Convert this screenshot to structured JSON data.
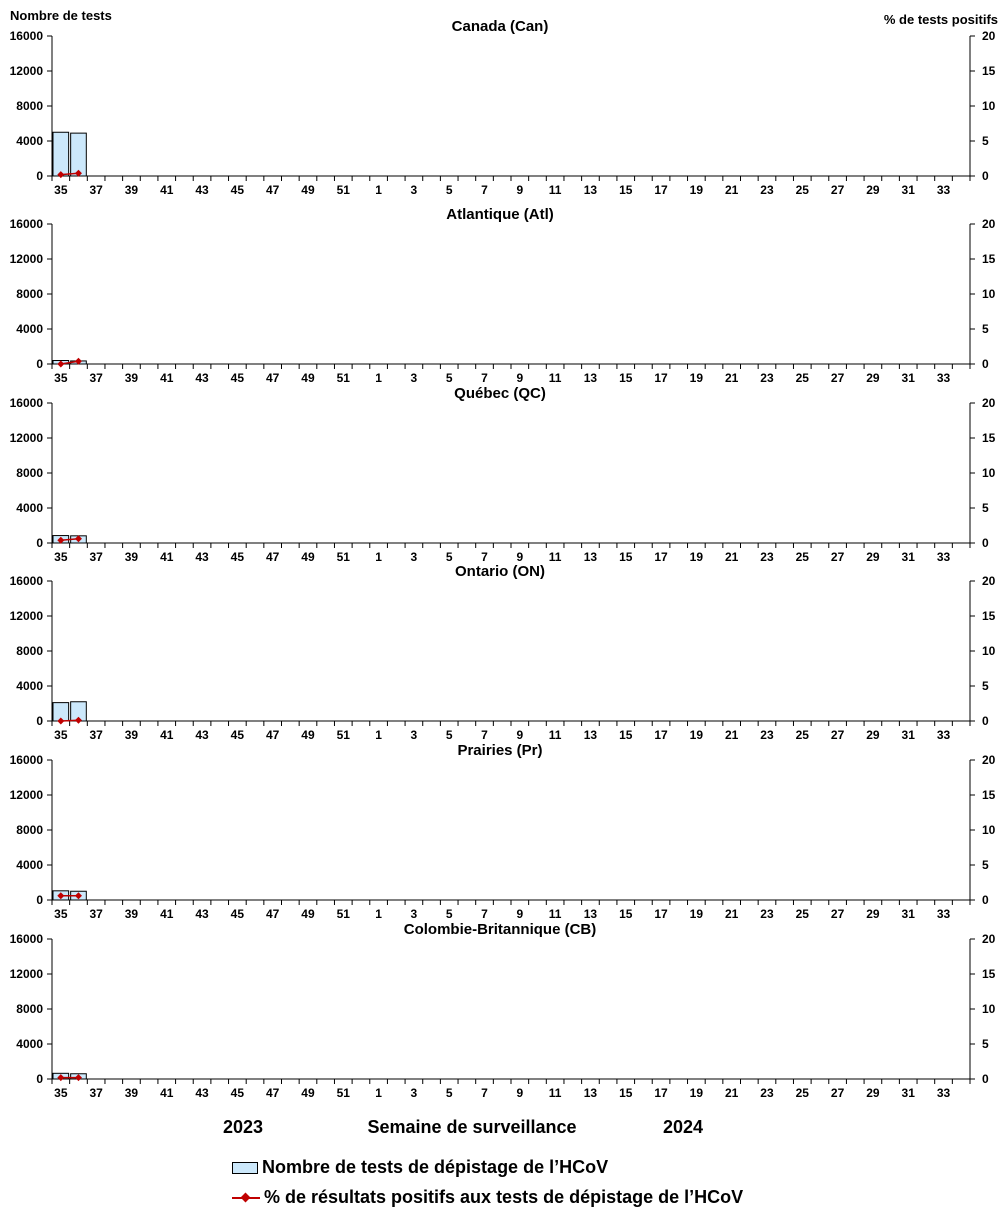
{
  "header": {
    "left_axis_title": "Nombre de tests",
    "right_axis_title": "% de tests positifs"
  },
  "footer": {
    "year_left": "2023",
    "xlabel": "Semaine de surveillance",
    "year_right": "2024"
  },
  "legend": {
    "bar_label": "Nombre de tests de dépistage de l’HCoV",
    "line_label": "% de résultats positifs aux tests de dépistage de l’HCoV"
  },
  "colors": {
    "bar_fill": "#cce8fb",
    "bar_stroke": "#000000",
    "line": "#c00000"
  },
  "chart_data": [
    {
      "type": "bar",
      "title": "Canada (Can)",
      "x_tick_labels": [
        "35",
        "37",
        "39",
        "41",
        "43",
        "45",
        "47",
        "49",
        "51",
        "1",
        "3",
        "5",
        "7",
        "9",
        "11",
        "13",
        "15",
        "17",
        "19",
        "21",
        "23",
        "25",
        "27",
        "29",
        "31",
        "33"
      ],
      "categories": [
        "35",
        "36"
      ],
      "ylim": [
        0,
        16000
      ],
      "y_ticks": [
        0,
        4000,
        8000,
        12000,
        16000
      ],
      "y2lim": [
        0,
        20
      ],
      "y2_ticks": [
        0,
        5,
        10,
        15,
        20
      ],
      "series": [
        {
          "name": "Nombre de tests de dépistage de l’HCoV",
          "axis": "left",
          "values": [
            5000,
            4900
          ]
        },
        {
          "name": "% de résultats positifs aux tests de dépistage de l’HCoV",
          "axis": "right",
          "values": [
            0.2,
            0.4
          ]
        }
      ]
    },
    {
      "type": "bar",
      "title": "Atlantique (Atl)",
      "x_tick_labels": [
        "35",
        "37",
        "39",
        "41",
        "43",
        "45",
        "47",
        "49",
        "51",
        "1",
        "3",
        "5",
        "7",
        "9",
        "11",
        "13",
        "15",
        "17",
        "19",
        "21",
        "23",
        "25",
        "27",
        "29",
        "31",
        "33"
      ],
      "categories": [
        "35",
        "36"
      ],
      "ylim": [
        0,
        16000
      ],
      "y_ticks": [
        0,
        4000,
        8000,
        12000,
        16000
      ],
      "y2lim": [
        0,
        20
      ],
      "y2_ticks": [
        0,
        5,
        10,
        15,
        20
      ],
      "series": [
        {
          "name": "Nombre de tests de dépistage de l’HCoV",
          "axis": "left",
          "values": [
            400,
            350
          ]
        },
        {
          "name": "% de résultats positifs aux tests de dépistage de l’HCoV",
          "axis": "right",
          "values": [
            0.0,
            0.4
          ]
        }
      ]
    },
    {
      "type": "bar",
      "title": "Québec (QC)",
      "x_tick_labels": [
        "35",
        "37",
        "39",
        "41",
        "43",
        "45",
        "47",
        "49",
        "51",
        "1",
        "3",
        "5",
        "7",
        "9",
        "11",
        "13",
        "15",
        "17",
        "19",
        "21",
        "23",
        "25",
        "27",
        "29",
        "31",
        "33"
      ],
      "categories": [
        "35",
        "36"
      ],
      "ylim": [
        0,
        16000
      ],
      "y_ticks": [
        0,
        4000,
        8000,
        12000,
        16000
      ],
      "y2lim": [
        0,
        20
      ],
      "y2_ticks": [
        0,
        5,
        10,
        15,
        20
      ],
      "series": [
        {
          "name": "Nombre de tests de dépistage de l’HCoV",
          "axis": "left",
          "values": [
            850,
            820
          ]
        },
        {
          "name": "% de résultats positifs aux tests de dépistage de l’HCoV",
          "axis": "right",
          "values": [
            0.4,
            0.6
          ]
        }
      ]
    },
    {
      "type": "bar",
      "title": "Ontario (ON)",
      "x_tick_labels": [
        "35",
        "37",
        "39",
        "41",
        "43",
        "45",
        "47",
        "49",
        "51",
        "1",
        "3",
        "5",
        "7",
        "9",
        "11",
        "13",
        "15",
        "17",
        "19",
        "21",
        "23",
        "25",
        "27",
        "29",
        "31",
        "33"
      ],
      "categories": [
        "35",
        "36"
      ],
      "ylim": [
        0,
        16000
      ],
      "y_ticks": [
        0,
        4000,
        8000,
        12000,
        16000
      ],
      "y2lim": [
        0,
        20
      ],
      "y2_ticks": [
        0,
        5,
        10,
        15,
        20
      ],
      "series": [
        {
          "name": "Nombre de tests de dépistage de l’HCoV",
          "axis": "left",
          "values": [
            2100,
            2200
          ]
        },
        {
          "name": "% de résultats positifs aux tests de dépistage de l’HCoV",
          "axis": "right",
          "values": [
            0.0,
            0.1
          ]
        }
      ]
    },
    {
      "type": "bar",
      "title": "Prairies (Pr)",
      "x_tick_labels": [
        "35",
        "37",
        "39",
        "41",
        "43",
        "45",
        "47",
        "49",
        "51",
        "1",
        "3",
        "5",
        "7",
        "9",
        "11",
        "13",
        "15",
        "17",
        "19",
        "21",
        "23",
        "25",
        "27",
        "29",
        "31",
        "33"
      ],
      "categories": [
        "35",
        "36"
      ],
      "ylim": [
        0,
        16000
      ],
      "y_ticks": [
        0,
        4000,
        8000,
        12000,
        16000
      ],
      "y2lim": [
        0,
        20
      ],
      "y2_ticks": [
        0,
        5,
        10,
        15,
        20
      ],
      "series": [
        {
          "name": "Nombre de tests de dépistage de l’HCoV",
          "axis": "left",
          "values": [
            1050,
            1000
          ]
        },
        {
          "name": "% de résultats positifs aux tests de dépistage de l’HCoV",
          "axis": "right",
          "values": [
            0.6,
            0.6
          ]
        }
      ]
    },
    {
      "type": "bar",
      "title": "Colombie-Britannique (CB)",
      "x_tick_labels": [
        "35",
        "37",
        "39",
        "41",
        "43",
        "45",
        "47",
        "49",
        "51",
        "1",
        "3",
        "5",
        "7",
        "9",
        "11",
        "13",
        "15",
        "17",
        "19",
        "21",
        "23",
        "25",
        "27",
        "29",
        "31",
        "33"
      ],
      "categories": [
        "35",
        "36"
      ],
      "ylim": [
        0,
        16000
      ],
      "y_ticks": [
        0,
        4000,
        8000,
        12000,
        16000
      ],
      "y2lim": [
        0,
        20
      ],
      "y2_ticks": [
        0,
        5,
        10,
        15,
        20
      ],
      "series": [
        {
          "name": "Nombre de tests de dépistage de l’HCoV",
          "axis": "left",
          "values": [
            650,
            600
          ]
        },
        {
          "name": "% de résultats positifs aux tests de dépistage de l’HCoV",
          "axis": "right",
          "values": [
            0.2,
            0.2
          ]
        }
      ]
    }
  ]
}
